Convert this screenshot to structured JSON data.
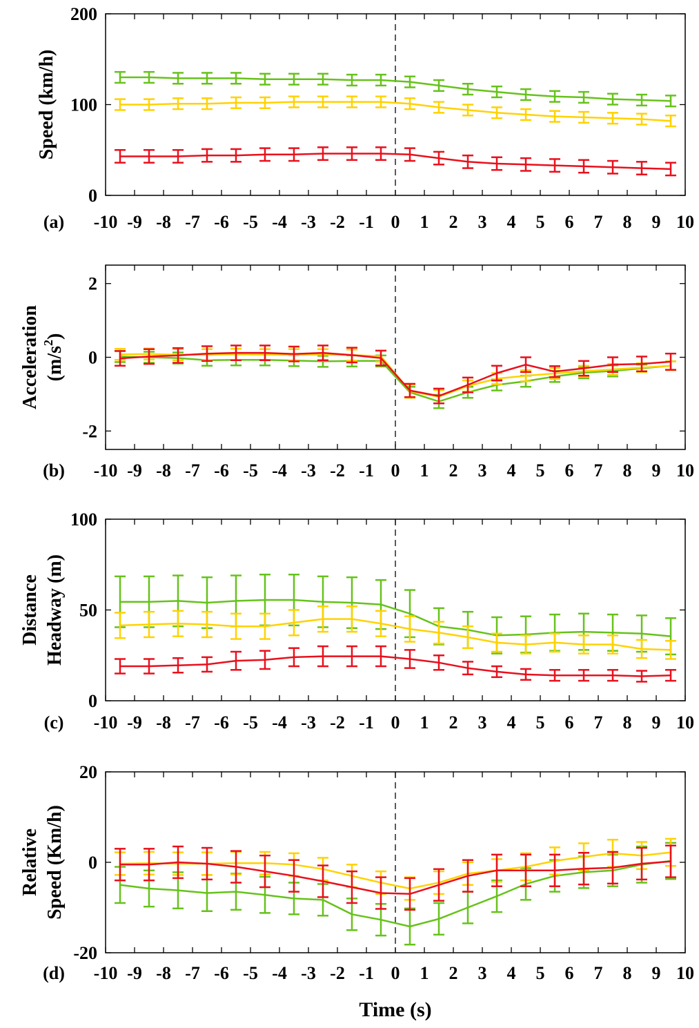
{
  "colors": {
    "green": "#66c21a",
    "yellow": "#ffd200",
    "red": "#e8101c",
    "axis": "#000000"
  },
  "xlabel": "Time (s)",
  "xlim": [
    -10,
    10
  ],
  "xticks": [
    -10,
    -9,
    -8,
    -7,
    -6,
    -5,
    -4,
    -3,
    -2,
    -1,
    0,
    1,
    2,
    3,
    4,
    5,
    6,
    7,
    8,
    9,
    10
  ],
  "chart_data": [
    {
      "type": "line",
      "panel_label": "(a)",
      "ylabel": "Speed (km/h)",
      "ylim": [
        0,
        200
      ],
      "yticks": [
        0,
        100,
        200
      ],
      "x": [
        -9.5,
        -8.5,
        -7.5,
        -6.5,
        -5.5,
        -4.5,
        -3.5,
        -2.5,
        -1.5,
        -0.5,
        0.5,
        1.5,
        2.5,
        3.5,
        4.5,
        5.5,
        6.5,
        7.5,
        8.5,
        9.5
      ],
      "series": [
        {
          "color": "green",
          "values": [
            130,
            130,
            129,
            129,
            129,
            128,
            128,
            128,
            127,
            127,
            125,
            121,
            117,
            114,
            111,
            109,
            108,
            106,
            105,
            104
          ],
          "error": [
            6,
            6,
            6,
            6,
            6,
            6,
            6,
            6,
            6,
            6,
            6,
            6,
            6,
            6,
            6,
            6,
            6,
            6,
            6,
            6
          ]
        },
        {
          "color": "yellow",
          "values": [
            100,
            100,
            101,
            101,
            102,
            102,
            103,
            103,
            103,
            103,
            101,
            97,
            94,
            91,
            89,
            87,
            86,
            85,
            84,
            82
          ],
          "error": [
            6,
            6,
            6,
            6,
            6,
            6,
            6,
            6,
            6,
            6,
            6,
            6,
            6,
            6,
            6,
            6,
            6,
            6,
            6,
            6
          ]
        },
        {
          "color": "red",
          "values": [
            43,
            43,
            43,
            44,
            44,
            45,
            45,
            46,
            46,
            46,
            45,
            41,
            37,
            35,
            34,
            33,
            32,
            31,
            30,
            29
          ],
          "error": [
            7,
            7,
            7,
            7,
            7,
            7,
            7,
            7,
            7,
            7,
            7,
            7,
            7,
            7,
            7,
            7,
            7,
            7,
            7,
            7
          ]
        }
      ]
    },
    {
      "type": "line",
      "panel_label": "(b)",
      "ylabel": "Acceleration",
      "ylabel2": "(m/s",
      "ylabel2_sup": "2",
      "ylabel2_end": ")",
      "ylim": [
        -2.5,
        2.5
      ],
      "yticks": [
        -2,
        0,
        2
      ],
      "x": [
        -9.5,
        -8.5,
        -7.5,
        -6.5,
        -5.5,
        -4.5,
        -3.5,
        -2.5,
        -1.5,
        -0.5,
        0.5,
        1.5,
        2.5,
        3.5,
        4.5,
        5.5,
        6.5,
        7.5,
        8.5,
        9.5
      ],
      "series": [
        {
          "color": "green",
          "values": [
            0.02,
            0.0,
            -0.02,
            -0.08,
            -0.07,
            -0.07,
            -0.09,
            -0.11,
            -0.1,
            -0.1,
            -0.95,
            -1.2,
            -0.95,
            -0.75,
            -0.65,
            -0.52,
            -0.42,
            -0.37,
            -0.3,
            -0.23
          ],
          "error": [
            0.15,
            0.15,
            0.15,
            0.15,
            0.15,
            0.15,
            0.15,
            0.15,
            0.15,
            0.15,
            0.15,
            0.18,
            0.15,
            0.15,
            0.15,
            0.15,
            0.15,
            0.15,
            0.1,
            0.12
          ]
        },
        {
          "color": "yellow",
          "values": [
            0.08,
            0.09,
            0.07,
            0.07,
            0.08,
            0.07,
            0.07,
            0.07,
            0.06,
            0.03,
            -0.92,
            -1.07,
            -0.78,
            -0.58,
            -0.5,
            -0.44,
            -0.38,
            -0.33,
            -0.28,
            -0.23
          ],
          "error": [
            0.15,
            0.15,
            0.15,
            0.15,
            0.15,
            0.15,
            0.15,
            0.15,
            0.15,
            0.15,
            0.18,
            0.18,
            0.15,
            0.15,
            0.15,
            0.15,
            0.15,
            0.15,
            0.12,
            0.12
          ]
        },
        {
          "color": "red",
          "values": [
            -0.03,
            0.02,
            0.05,
            0.1,
            0.12,
            0.12,
            0.09,
            0.12,
            0.06,
            -0.02,
            -0.9,
            -1.05,
            -0.75,
            -0.43,
            -0.2,
            -0.39,
            -0.3,
            -0.2,
            -0.18,
            -0.12
          ],
          "error": [
            0.2,
            0.2,
            0.2,
            0.2,
            0.2,
            0.2,
            0.2,
            0.2,
            0.2,
            0.2,
            0.18,
            0.2,
            0.2,
            0.2,
            0.2,
            0.15,
            0.2,
            0.2,
            0.2,
            0.22
          ]
        }
      ]
    },
    {
      "type": "line",
      "panel_label": "(c)",
      "ylabel": "Distance",
      "ylabel2": "Headway (m)",
      "ylim": [
        0,
        100
      ],
      "yticks": [
        0,
        50,
        100
      ],
      "x": [
        -9.5,
        -8.5,
        -7.5,
        -6.5,
        -5.5,
        -4.5,
        -3.5,
        -2.5,
        -1.5,
        -0.5,
        0.5,
        1.5,
        2.5,
        3.5,
        4.5,
        5.5,
        6.5,
        7.5,
        8.5,
        9.5
      ],
      "series": [
        {
          "color": "green",
          "values": [
            54.5,
            54.5,
            55,
            54,
            55,
            55.5,
            55.5,
            54.5,
            54,
            53,
            48,
            41,
            39,
            36,
            36.5,
            37.5,
            38,
            37.5,
            37,
            35.5
          ],
          "error": [
            14,
            14,
            14,
            14,
            14,
            14,
            14,
            14,
            14,
            13.5,
            13,
            10,
            10,
            10,
            10,
            10,
            10,
            10,
            10,
            10
          ]
        },
        {
          "color": "yellow",
          "values": [
            41.5,
            42,
            42.5,
            42,
            41,
            41,
            43,
            45,
            45,
            42.5,
            39.5,
            37.5,
            35,
            32,
            31,
            32,
            31,
            31,
            28.5,
            28
          ],
          "error": [
            7,
            7,
            7,
            7,
            7,
            7,
            7,
            7,
            7,
            7,
            7,
            6,
            6,
            5,
            5,
            5,
            5,
            5,
            5,
            5
          ]
        },
        {
          "color": "red",
          "values": [
            19,
            19,
            19.5,
            20,
            22,
            22.5,
            24,
            24.5,
            24.5,
            24.5,
            23,
            21,
            18,
            16,
            14.5,
            14,
            14,
            14,
            13.5,
            14
          ],
          "error": [
            4,
            4,
            4,
            4,
            5,
            5,
            5,
            5.5,
            5.5,
            5.5,
            5,
            4,
            3.5,
            3,
            3,
            3,
            3,
            3,
            3,
            3
          ]
        }
      ]
    },
    {
      "type": "line",
      "panel_label": "(d)",
      "ylabel": "Relative",
      "ylabel2": "Speed (Km/h)",
      "ylim": [
        -20,
        20
      ],
      "yticks": [
        -20,
        0,
        20
      ],
      "x": [
        -9.5,
        -8.5,
        -7.5,
        -6.5,
        -5.5,
        -4.5,
        -3.5,
        -2.5,
        -1.5,
        -0.5,
        0.5,
        1.5,
        2.5,
        3.5,
        4.5,
        5.5,
        6.5,
        7.5,
        8.5,
        9.5
      ],
      "series": [
        {
          "color": "green",
          "values": [
            -5,
            -5.8,
            -6.2,
            -6.8,
            -6.5,
            -7.2,
            -8,
            -8.3,
            -11.5,
            -12.7,
            -14.2,
            -12.5,
            -10,
            -7.5,
            -4.8,
            -3,
            -2.2,
            -1.8,
            -0.5,
            0.3
          ],
          "error": [
            4,
            4,
            4,
            4,
            4,
            4,
            3.5,
            3.5,
            3.5,
            3.5,
            4,
            3.5,
            3.5,
            3.5,
            3.5,
            3.5,
            3.5,
            3.5,
            4,
            4
          ]
        },
        {
          "color": "yellow",
          "values": [
            -0.3,
            -0.2,
            -0.3,
            -0.3,
            -0.2,
            -0.2,
            -0.5,
            -1.5,
            -3,
            -4.5,
            -5.8,
            -4.5,
            -2.5,
            -1.8,
            -1,
            0.3,
            1.2,
            2,
            1.5,
            2.2
          ],
          "error": [
            2.5,
            2.5,
            2.5,
            2.5,
            2.5,
            2.5,
            2.5,
            2.5,
            2.5,
            2.5,
            2.5,
            2.5,
            2.5,
            2.5,
            3,
            3,
            3,
            3,
            3,
            3
          ]
        },
        {
          "color": "red",
          "values": [
            -0.5,
            -0.5,
            0,
            -0.3,
            -1,
            -2,
            -3,
            -4.2,
            -5.5,
            -6.8,
            -7,
            -5,
            -3,
            -1.8,
            -1.8,
            -1.8,
            -1.4,
            -1.2,
            -0.3,
            0.2
          ],
          "error": [
            3.5,
            3.5,
            3.5,
            3.5,
            3.5,
            3.5,
            3.5,
            3.5,
            3.5,
            3.5,
            3.5,
            3.5,
            3.5,
            3.5,
            3.5,
            3.5,
            3.5,
            3.5,
            3.5,
            3.5
          ]
        }
      ]
    }
  ]
}
